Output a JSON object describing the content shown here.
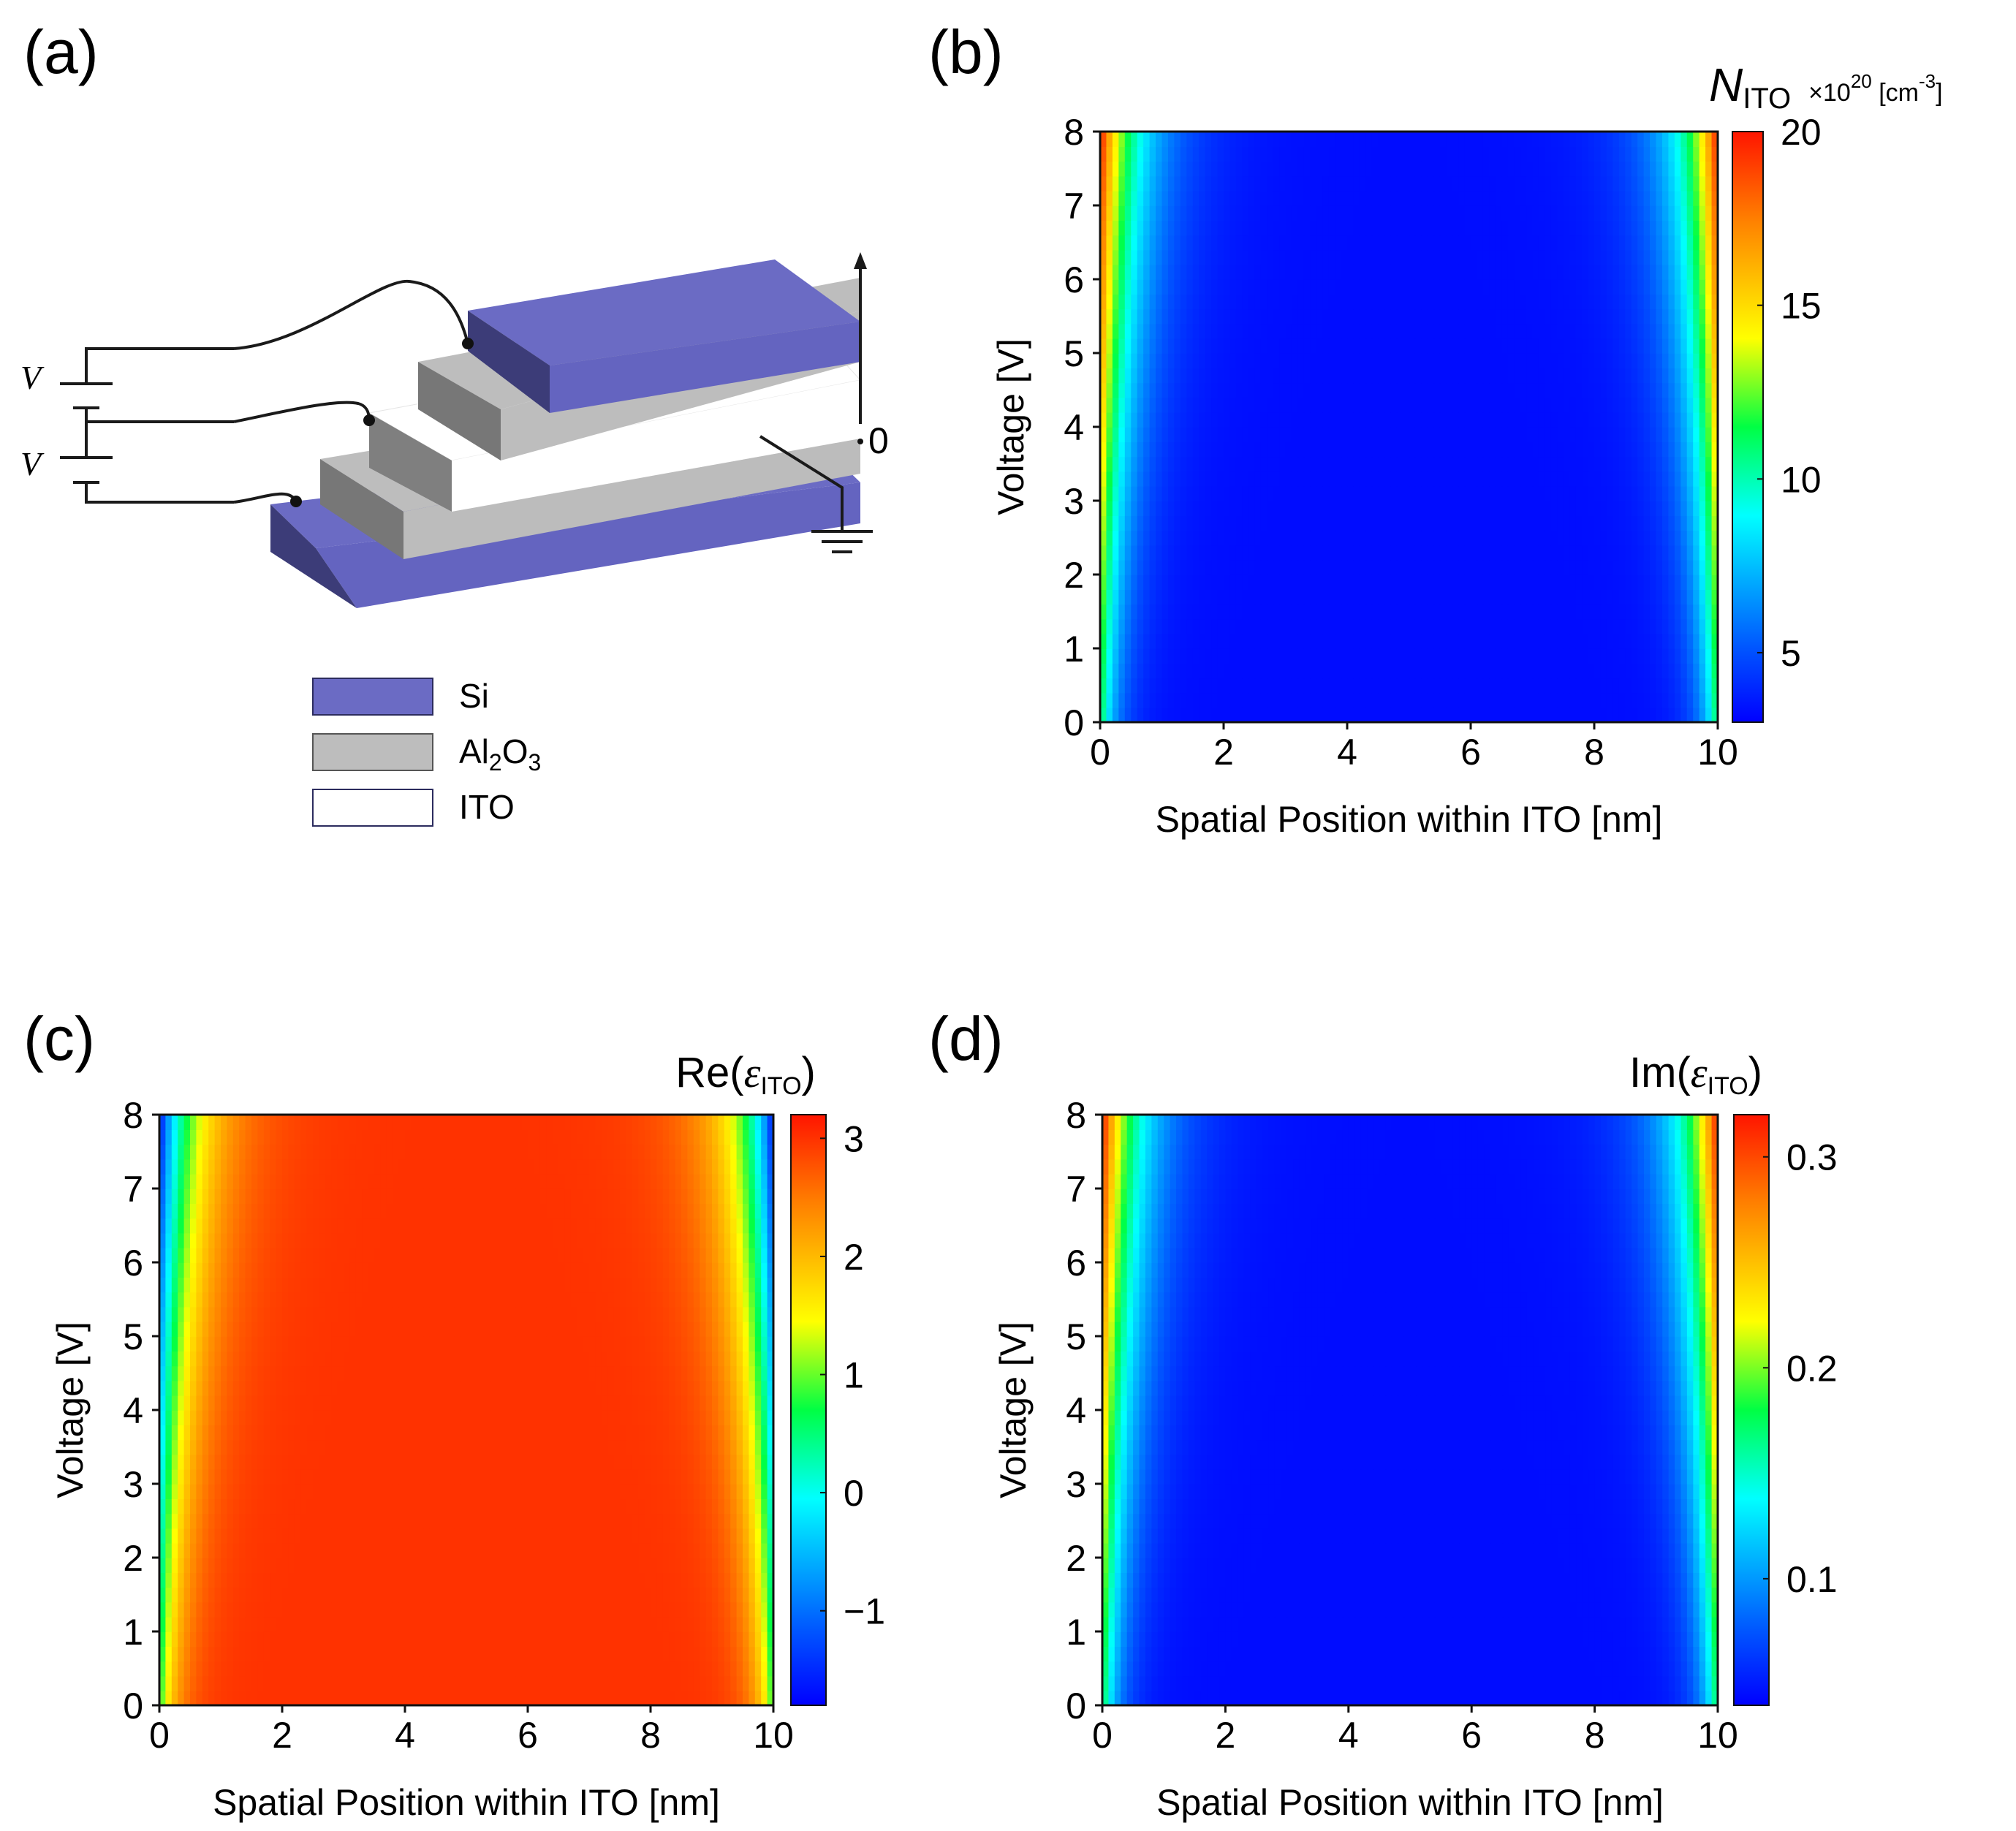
{
  "panels": {
    "a": {
      "label": "(a)"
    },
    "b": {
      "label": "(b)"
    },
    "c": {
      "label": "(c)"
    },
    "d": {
      "label": "(d)"
    }
  },
  "device": {
    "voltage_label_top": "V",
    "voltage_label_bottom": "V",
    "zero_label": "0",
    "legend": [
      {
        "id": "si",
        "label": "Si",
        "color": "#6b6bc4"
      },
      {
        "id": "al2o3",
        "label_main": "Al",
        "label_sub1": "2",
        "label_mid": "O",
        "label_sub2": "3",
        "color": "#bdbdbd"
      },
      {
        "id": "ito",
        "label": "ITO",
        "color": "#ffffff"
      }
    ],
    "colors": {
      "si_top": "#6b6bc4",
      "si_front": "#4a4a8c",
      "si_side": "#3a3a70",
      "al_top": "#bdbdbd",
      "al_front": "#8c8c8c",
      "al_side": "#6e6e6e",
      "ito_top": "#ffffff"
    }
  },
  "chart_data": [
    {
      "id": "b",
      "type": "heatmap",
      "title": "N_ITO",
      "colorbar_title_main": "N",
      "colorbar_title_sub": "ITO",
      "colorbar_unit_pre": "×10",
      "colorbar_unit_exp": "20",
      "colorbar_unit_post": " [cm",
      "colorbar_unit_exp2": "-3",
      "colorbar_unit_close": "]",
      "xlabel": "Spatial Position within ITO [nm]",
      "ylabel": "Voltage [V]",
      "xlim": [
        0,
        10
      ],
      "ylim": [
        0,
        8
      ],
      "xticks": [
        "0",
        "2",
        "4",
        "6",
        "8",
        "10"
      ],
      "yticks": [
        "0",
        "1",
        "2",
        "3",
        "4",
        "5",
        "6",
        "7",
        "8"
      ],
      "clim": [
        3,
        20
      ],
      "cticks": [
        {
          "v": 5,
          "t": "5"
        },
        {
          "v": 10,
          "t": "10"
        },
        {
          "v": 15,
          "t": "15"
        },
        {
          "v": 20,
          "t": "20"
        }
      ],
      "field": {
        "base": 3.3,
        "edge_max": 20,
        "decay_nm": 0.45,
        "edge_floor": 0.5
      }
    },
    {
      "id": "c",
      "type": "heatmap",
      "title": "Re(ε_ITO)",
      "colorbar_title_main": "Re",
      "colorbar_title_open": "(",
      "colorbar_title_eps": "ε",
      "colorbar_title_sub": "ITO",
      "colorbar_title_close": ")",
      "xlabel": "Spatial Position within ITO [nm]",
      "ylabel": "Voltage [V]",
      "xlim": [
        0,
        10
      ],
      "ylim": [
        0,
        8
      ],
      "xticks": [
        "0",
        "2",
        "4",
        "6",
        "8",
        "10"
      ],
      "yticks": [
        "0",
        "1",
        "2",
        "3",
        "4",
        "5",
        "6",
        "7",
        "8"
      ],
      "clim": [
        -1.8,
        3.2
      ],
      "cticks": [
        {
          "v": -1,
          "t": "−1"
        },
        {
          "v": 0,
          "t": "0"
        },
        {
          "v": 1,
          "t": "1"
        },
        {
          "v": 2,
          "t": "2"
        },
        {
          "v": 3,
          "t": "3"
        }
      ],
      "field": {
        "base": 3.0,
        "edge_max": -1.7,
        "decay_nm": 0.45,
        "edge_floor": 0.5
      }
    },
    {
      "id": "d",
      "type": "heatmap",
      "title": "Im(ε_ITO)",
      "colorbar_title_main": "Im",
      "colorbar_title_open": "(",
      "colorbar_title_eps": "ε",
      "colorbar_title_sub": "ITO",
      "colorbar_title_close": ")",
      "xlabel": "Spatial Position within ITO [nm]",
      "ylabel": "Voltage [V]",
      "xlim": [
        0,
        10
      ],
      "ylim": [
        0,
        8
      ],
      "xticks": [
        "0",
        "2",
        "4",
        "6",
        "8",
        "10"
      ],
      "yticks": [
        "0",
        "1",
        "2",
        "3",
        "4",
        "5",
        "6",
        "7",
        "8"
      ],
      "clim": [
        0.04,
        0.32
      ],
      "cticks": [
        {
          "v": 0.1,
          "t": "0.1"
        },
        {
          "v": 0.2,
          "t": "0.2"
        },
        {
          "v": 0.3,
          "t": "0.3"
        }
      ],
      "field": {
        "base": 0.045,
        "edge_max": 0.32,
        "decay_nm": 0.45,
        "edge_floor": 0.5
      }
    }
  ]
}
